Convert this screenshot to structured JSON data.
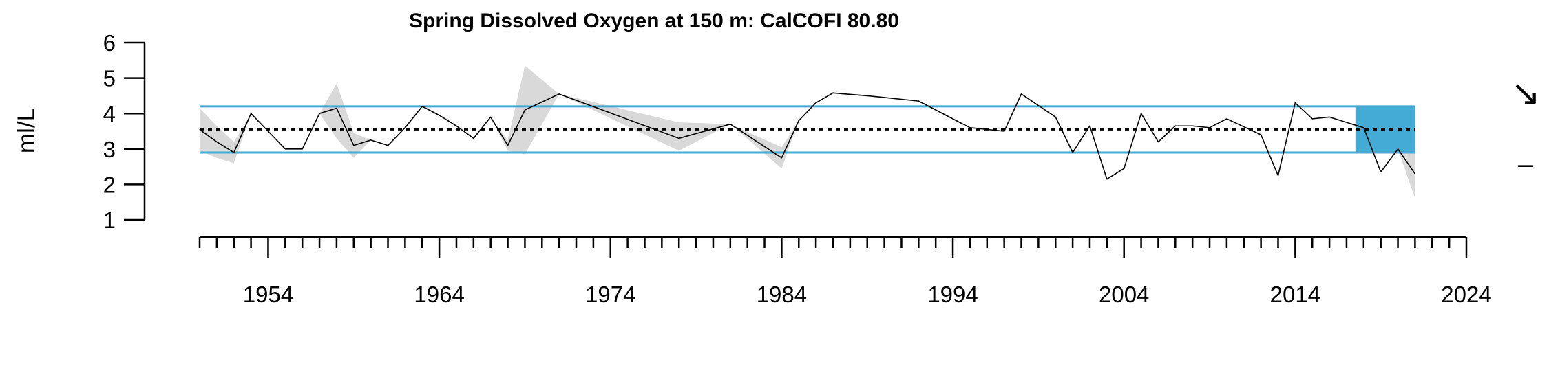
{
  "chart_data": {
    "type": "line",
    "title": "Spring Dissolved Oxygen at 150 m: CalCOFI 80.80",
    "xlabel": "",
    "ylabel": "ml/L",
    "xlim": [
      1950,
      2024
    ],
    "ylim": [
      1,
      6
    ],
    "y_ticks": [
      "1",
      "2",
      "3",
      "4",
      "5",
      "6"
    ],
    "x_tick_labels": [
      "1954",
      "1964",
      "1974",
      "1984",
      "1994",
      "2004",
      "2014",
      "2024"
    ],
    "x_minor_tick_step": 1,
    "mean": 3.55,
    "upper_sd": 4.2,
    "lower_sd": 2.9,
    "recent_window": [
      2018,
      2021
    ],
    "trend_symbol": "↘",
    "mean_symbol": "–",
    "colors": {
      "line": "#000000",
      "sd_lines": "#44aad6",
      "recent_fill": "#44aad6",
      "error_band": "#d9d9d9"
    },
    "series": [
      {
        "x": [
          1950,
          1951,
          1952,
          1953,
          1954,
          1955,
          1956,
          1957,
          1958,
          1959,
          1960,
          1961,
          1962,
          1963,
          1964,
          1965,
          1966,
          1967,
          1968,
          1969,
          1971,
          1978,
          1981,
          1984,
          1985,
          1986,
          1987,
          1989,
          1992,
          1995,
          1997,
          1998,
          2000,
          2001,
          2002,
          2003,
          2004,
          2005,
          2006,
          2007,
          2008,
          2009,
          2010,
          2012,
          2013,
          2014,
          2015,
          2016,
          2018,
          2019,
          2020,
          2021
        ],
        "y": [
          3.55,
          3.2,
          2.9,
          4.0,
          3.5,
          3.0,
          3.0,
          4.0,
          4.15,
          3.1,
          3.25,
          3.1,
          3.6,
          4.2,
          3.95,
          3.65,
          3.3,
          3.9,
          3.1,
          4.1,
          4.55,
          3.3,
          3.7,
          2.75,
          3.8,
          4.3,
          4.58,
          4.5,
          4.35,
          3.6,
          3.5,
          4.55,
          3.9,
          2.9,
          3.65,
          2.15,
          2.45,
          4.0,
          3.2,
          3.65,
          3.65,
          3.6,
          3.85,
          3.4,
          2.25,
          4.3,
          3.85,
          3.9,
          3.6,
          2.35,
          3.0,
          2.3
        ],
        "lower": [
          2.95,
          2.75,
          2.6,
          4.0,
          3.5,
          3.0,
          3.0,
          4.0,
          3.3,
          2.75,
          3.25,
          3.1,
          3.6,
          4.2,
          3.95,
          3.65,
          3.3,
          3.9,
          2.95,
          2.85,
          4.55,
          2.95,
          3.7,
          2.45,
          3.8,
          4.3,
          4.58,
          4.5,
          4.35,
          3.6,
          3.5,
          4.55,
          3.9,
          2.9,
          3.65,
          2.15,
          2.45,
          4.0,
          3.2,
          3.65,
          3.65,
          3.6,
          3.85,
          3.4,
          2.25,
          4.3,
          3.85,
          3.9,
          3.6,
          2.35,
          3.0,
          1.6
        ],
        "upper": [
          4.15,
          3.65,
          3.2,
          4.0,
          3.5,
          3.0,
          3.0,
          4.0,
          4.85,
          3.45,
          3.25,
          3.1,
          3.6,
          4.2,
          3.95,
          3.65,
          3.3,
          3.9,
          3.25,
          5.35,
          4.55,
          3.75,
          3.7,
          3.05,
          3.8,
          4.3,
          4.58,
          4.5,
          4.35,
          3.6,
          3.5,
          4.55,
          3.9,
          2.9,
          3.65,
          2.15,
          2.45,
          4.0,
          3.2,
          3.65,
          3.65,
          3.6,
          3.85,
          3.4,
          2.25,
          4.3,
          3.85,
          3.9,
          3.6,
          2.35,
          3.0,
          3.05
        ]
      }
    ]
  }
}
